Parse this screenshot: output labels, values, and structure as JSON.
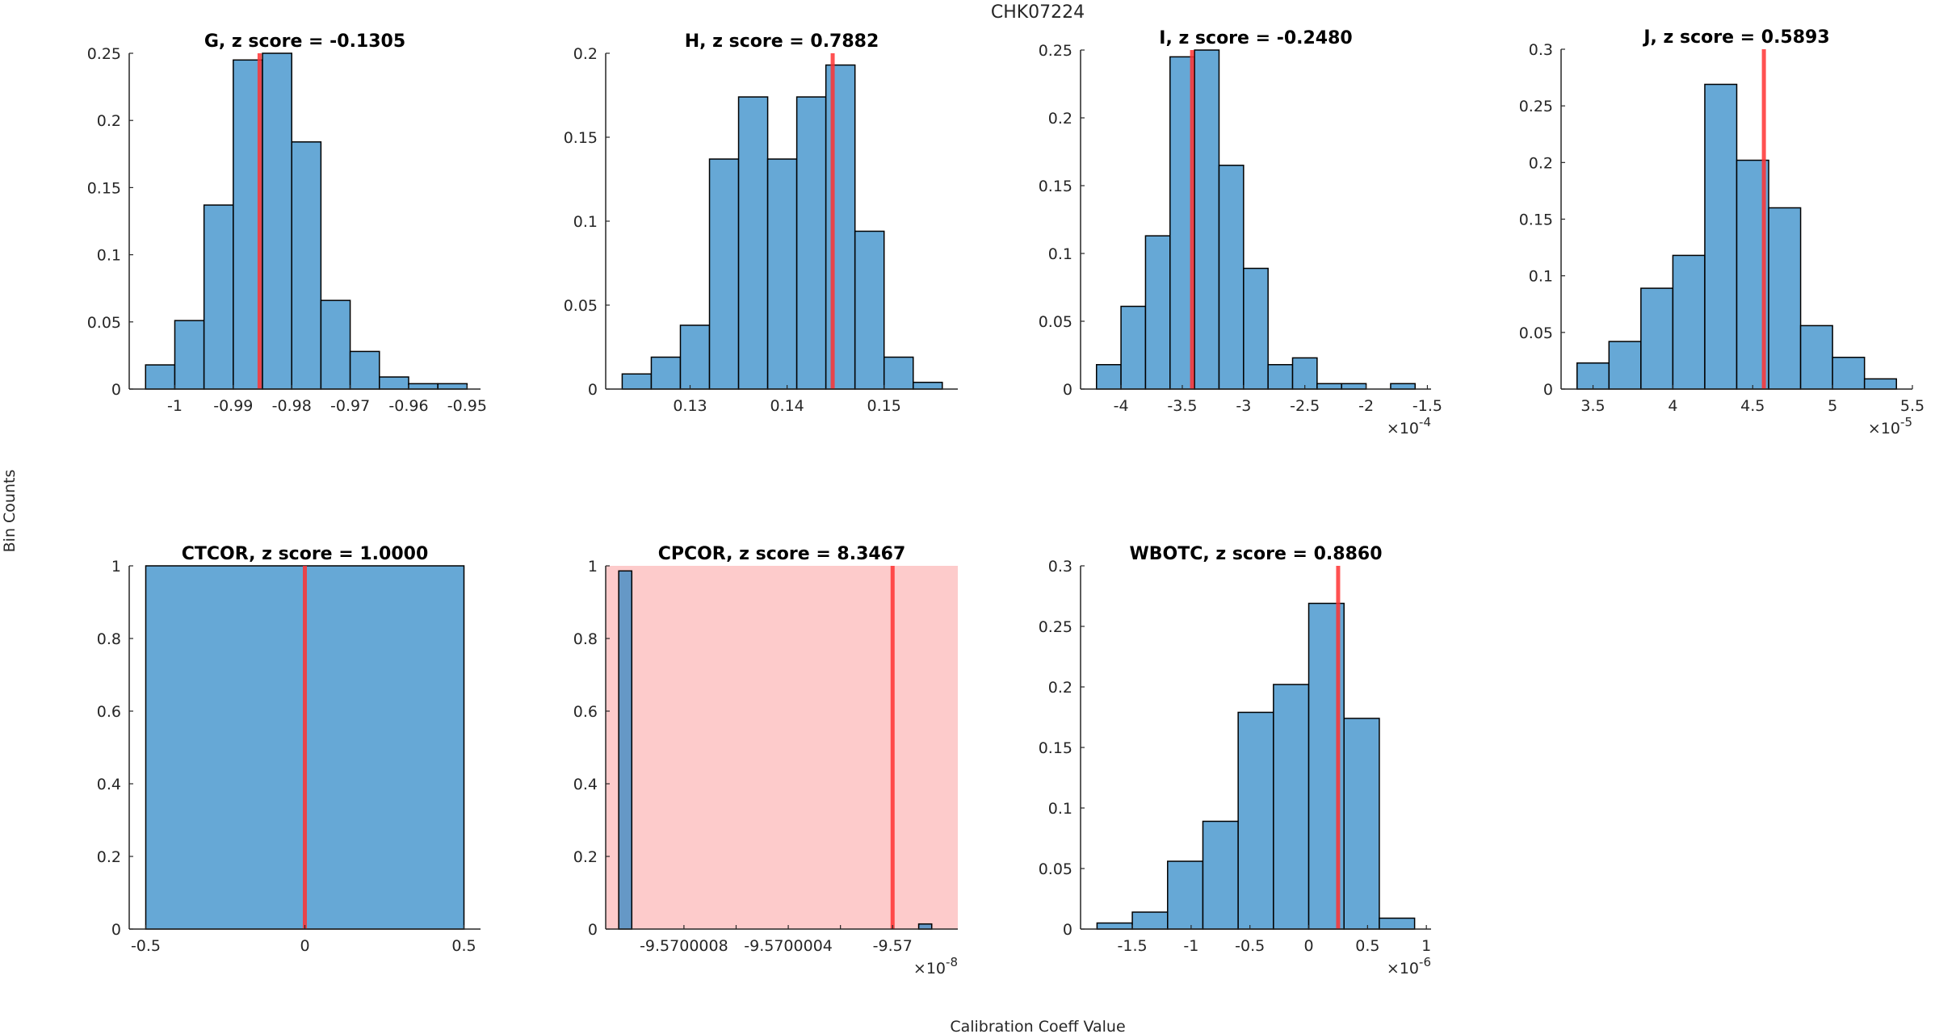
{
  "figure": {
    "suptitle": "CHK07224",
    "ylabel": "Bin Counts",
    "xlabel": "Calibration Coeff Value"
  },
  "colors": {
    "bar_fill": "#66a8d6",
    "bar_fill_flagged": "#6598c6",
    "bar_edge": "#000000",
    "zline": "#ff3333",
    "flag_background": "#fdcbcb"
  },
  "chart_data": [
    {
      "type": "bar",
      "name": "G",
      "title": "G, z score = -0.1305",
      "z_score": -0.1305,
      "flagged": false,
      "bin_edges": [
        -1.005,
        -1.0,
        -0.995,
        -0.99,
        -0.985,
        -0.98,
        -0.975,
        -0.97,
        -0.965,
        -0.96,
        -0.955,
        -0.95
      ],
      "values": [
        0.018,
        0.051,
        0.137,
        0.245,
        0.25,
        0.184,
        0.066,
        0.028,
        0.009,
        0.004,
        0.004
      ],
      "marker_x": -0.9855,
      "xlim": [
        -1.0078,
        -0.9477
      ],
      "ylim": [
        0,
        0.25
      ],
      "xticks": [
        -1,
        -0.99,
        -0.98,
        -0.97,
        -0.96,
        -0.95
      ],
      "xtick_labels": [
        "-1",
        "-0.99",
        "-0.98",
        "-0.97",
        "-0.96",
        "-0.95"
      ],
      "yticks": [
        0,
        0.05,
        0.1,
        0.15,
        0.2,
        0.25
      ],
      "ytick_labels": [
        "0",
        "0.05",
        "0.1",
        "0.15",
        "0.2",
        "0.25"
      ],
      "x_exponent": ""
    },
    {
      "type": "bar",
      "name": "H",
      "title": "H, z score = 0.7882",
      "z_score": 0.7882,
      "flagged": false,
      "bin_edges": [
        0.123,
        0.126,
        0.129,
        0.132,
        0.135,
        0.138,
        0.141,
        0.144,
        0.147,
        0.15,
        0.153,
        0.156
      ],
      "values": [
        0.009,
        0.019,
        0.038,
        0.137,
        0.174,
        0.137,
        0.174,
        0.193,
        0.094,
        0.019,
        0.004
      ],
      "marker_x": 0.1447,
      "xlim": [
        0.1213,
        0.1576
      ],
      "ylim": [
        0,
        0.2
      ],
      "xticks": [
        0.13,
        0.14,
        0.15
      ],
      "xtick_labels": [
        "0.13",
        "0.14",
        "0.15"
      ],
      "yticks": [
        0,
        0.05,
        0.1,
        0.15,
        0.2
      ],
      "ytick_labels": [
        "0",
        "0.05",
        "0.1",
        "0.15",
        "0.2"
      ],
      "x_exponent": ""
    },
    {
      "type": "bar",
      "name": "I",
      "title": "I, z score = -0.2480",
      "z_score": -0.248,
      "flagged": false,
      "bin_edges": [
        -4.2,
        -4.0,
        -3.8,
        -3.6,
        -3.4,
        -3.2,
        -3.0,
        -2.8,
        -2.6,
        -2.4,
        -2.2,
        -2.0,
        -1.8,
        -1.6
      ],
      "values": [
        0.018,
        0.061,
        0.113,
        0.245,
        0.25,
        0.165,
        0.089,
        0.018,
        0.023,
        0.004,
        0.004,
        0.0,
        0.004
      ],
      "marker_x": -3.42,
      "xlim": [
        -4.33,
        -1.47
      ],
      "ylim": [
        0,
        0.25
      ],
      "xticks": [
        -4,
        -3.5,
        -3,
        -2.5,
        -2,
        -1.5
      ],
      "xtick_labels": [
        "-4",
        "-3.5",
        "-3",
        "-2.5",
        "-2",
        "-1.5"
      ],
      "yticks": [
        0,
        0.05,
        0.1,
        0.15,
        0.2,
        0.25
      ],
      "ytick_labels": [
        "0",
        "0.05",
        "0.1",
        "0.15",
        "0.2",
        "0.25"
      ],
      "x_exponent": "-4"
    },
    {
      "type": "bar",
      "name": "J",
      "title": "J, z score = 0.5893",
      "z_score": 0.5893,
      "flagged": false,
      "bin_edges": [
        3.4,
        3.6,
        3.8,
        4.0,
        4.2,
        4.4,
        4.6,
        4.8,
        5.0,
        5.2,
        5.4
      ],
      "values": [
        0.023,
        0.042,
        0.089,
        0.118,
        0.269,
        0.202,
        0.16,
        0.056,
        0.028,
        0.009
      ],
      "marker_x": 4.57,
      "xlim": [
        3.3,
        5.5
      ],
      "ylim": [
        0,
        0.3
      ],
      "xticks": [
        3.5,
        4,
        4.5,
        5,
        5.5
      ],
      "xtick_labels": [
        "3.5",
        "4",
        "4.5",
        "5",
        "5.5"
      ],
      "yticks": [
        0,
        0.05,
        0.1,
        0.15,
        0.2,
        0.25,
        0.3
      ],
      "ytick_labels": [
        "0",
        "0.05",
        "0.1",
        "0.15",
        "0.2",
        "0.25",
        "0.3"
      ],
      "x_exponent": "-5"
    },
    {
      "type": "bar",
      "name": "CTCOR",
      "title": "CTCOR, z score = 1.0000",
      "z_score": 1.0,
      "flagged": false,
      "bin_edges": [
        -0.5,
        0.5
      ],
      "values": [
        1.0
      ],
      "marker_x": 0,
      "xlim": [
        -0.552,
        0.552
      ],
      "ylim": [
        0,
        1
      ],
      "xticks": [
        -0.5,
        0,
        0.5
      ],
      "xtick_labels": [
        "-0.5",
        "0",
        "0.5"
      ],
      "yticks": [
        0,
        0.2,
        0.4,
        0.6,
        0.8,
        1
      ],
      "ytick_labels": [
        "0",
        "0.2",
        "0.4",
        "0.6",
        "0.8",
        "1"
      ],
      "x_exponent": ""
    },
    {
      "type": "bar",
      "name": "CPCOR",
      "title": "CPCOR, z score = 8.3467",
      "z_score": 8.3467,
      "flagged": true,
      "bin_edges": [
        -9.57000105,
        -9.570001,
        -9.5699999,
        -9.56999985
      ],
      "values": [
        0.986,
        0.0,
        0.014
      ],
      "marker_x": -9.57,
      "xlim": [
        -9.5700011,
        -9.56999975
      ],
      "ylim": [
        0,
        1
      ],
      "xticks": [
        -9.5700008,
        -9.5700006,
        -9.5700004,
        -9.5700002,
        -9.57
      ],
      "xtick_labels": [
        "-9.5700008",
        "",
        "-9.5700004",
        "",
        "-9.57"
      ],
      "yticks": [
        0,
        0.2,
        0.4,
        0.6,
        0.8,
        1
      ],
      "ytick_labels": [
        "0",
        "0.2",
        "0.4",
        "0.6",
        "0.8",
        "1"
      ],
      "x_exponent": "-8"
    },
    {
      "type": "bar",
      "name": "WBOTC",
      "title": "WBOTC, z score = 0.8860",
      "z_score": 0.886,
      "flagged": false,
      "bin_edges": [
        -1.8,
        -1.5,
        -1.2,
        -0.9,
        -0.6,
        -0.3,
        0.0,
        0.3,
        0.6,
        0.9
      ],
      "values": [
        0.005,
        0.014,
        0.056,
        0.089,
        0.179,
        0.202,
        0.269,
        0.174,
        0.009
      ],
      "marker_x": 0.25,
      "xlim": [
        -1.94,
        1.04
      ],
      "ylim": [
        0,
        0.3
      ],
      "xticks": [
        -1.5,
        -1,
        -0.5,
        0,
        0.5,
        1
      ],
      "xtick_labels": [
        "-1.5",
        "-1",
        "-0.5",
        "0",
        "0.5",
        "1"
      ],
      "yticks": [
        0,
        0.05,
        0.1,
        0.15,
        0.2,
        0.25,
        0.3
      ],
      "ytick_labels": [
        "0",
        "0.05",
        "0.1",
        "0.15",
        "0.2",
        "0.25",
        "0.3"
      ],
      "x_exponent": "-6"
    }
  ]
}
